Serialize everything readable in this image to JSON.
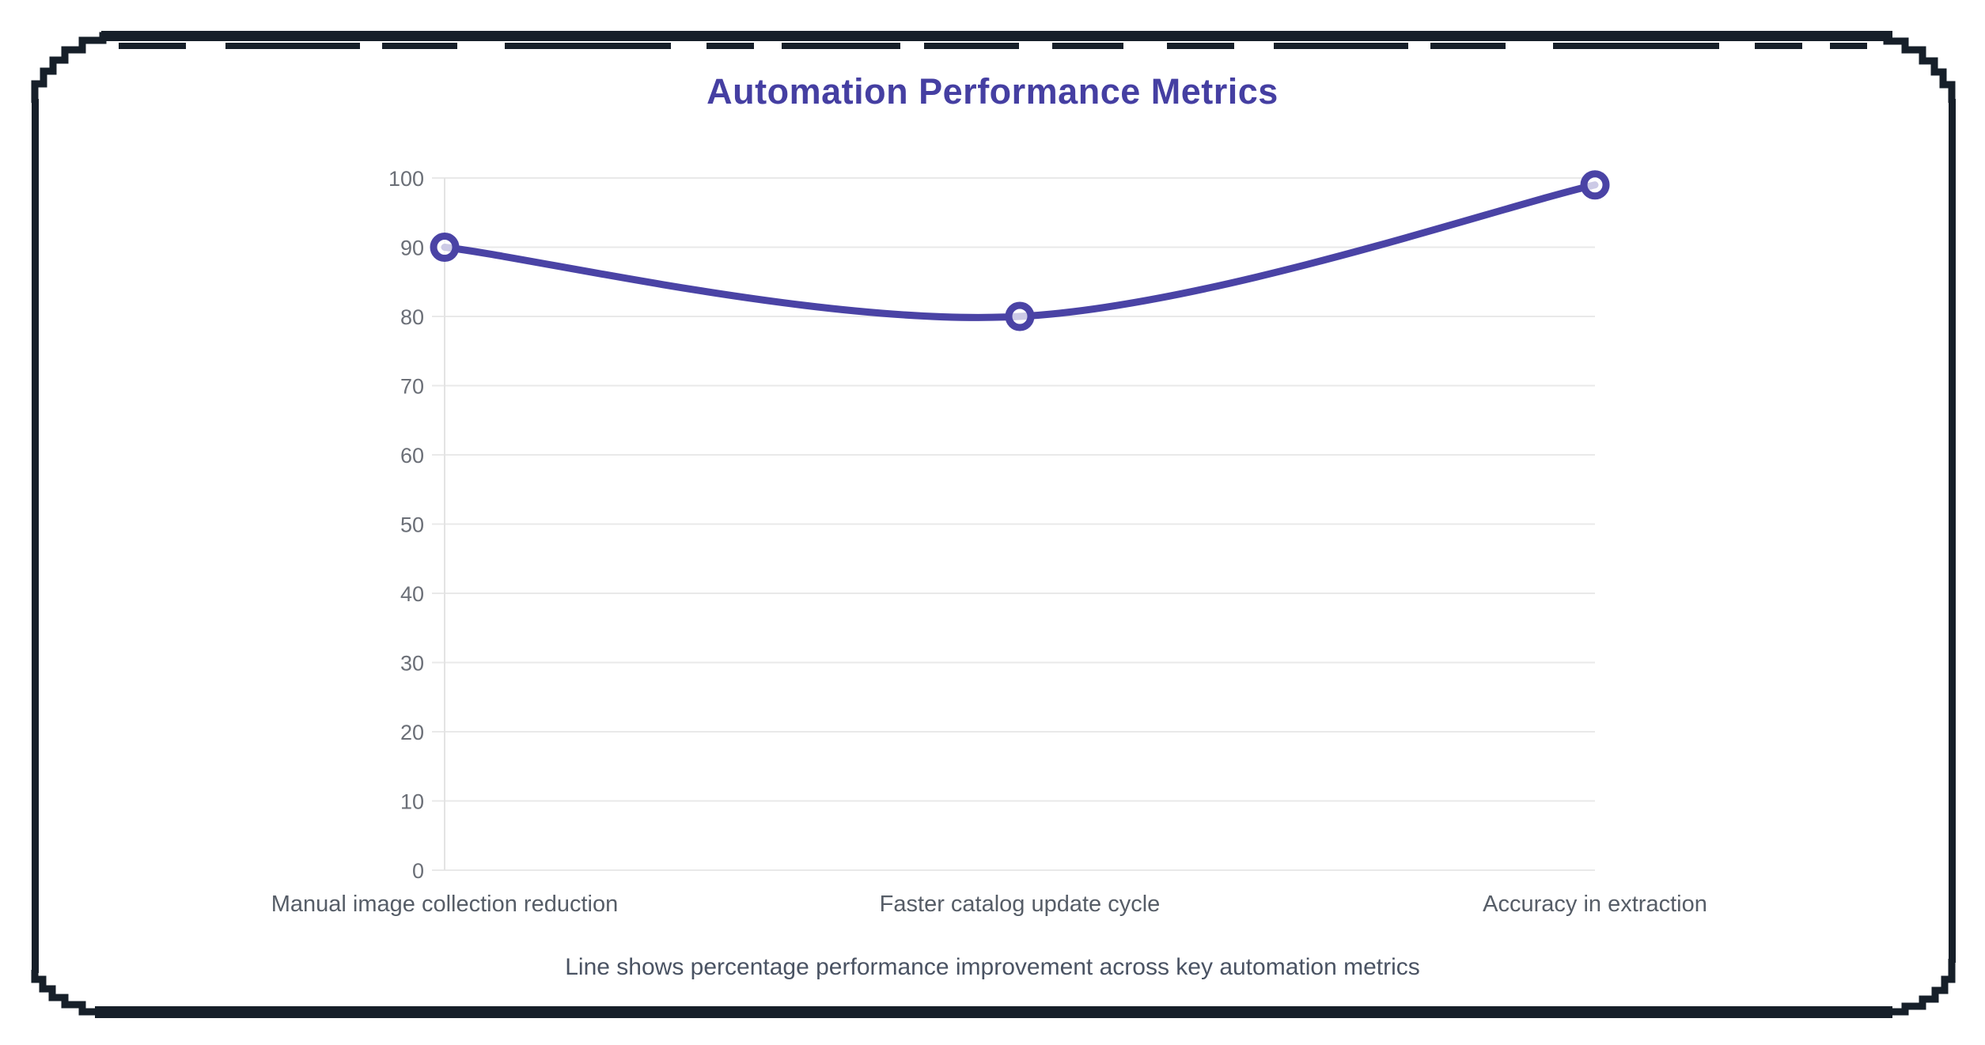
{
  "chart_data": {
    "type": "line",
    "title": "Automation Performance Metrics",
    "categories": [
      "Manual image collection reduction",
      "Faster catalog update cycle",
      "Accuracy in extraction"
    ],
    "values": [
      90,
      80,
      99
    ],
    "ylim": [
      0,
      100
    ],
    "ytick_step": 10,
    "grid": true,
    "legend": "none",
    "caption": "Line shows percentage performance improvement across key automation metrics",
    "colors": {
      "line": "#4a43a5",
      "point_ring": "#4a43a5",
      "point_fill": "rgba(255,255,255,0.72)",
      "title": "#453fa2",
      "y_tick_label": "#6b6f77",
      "x_tick_label": "#565d67",
      "caption": "#4a5363",
      "gridline": "#e9e9e9",
      "axis_border": "#e3e3e3",
      "frame_border": "#161f29"
    }
  }
}
